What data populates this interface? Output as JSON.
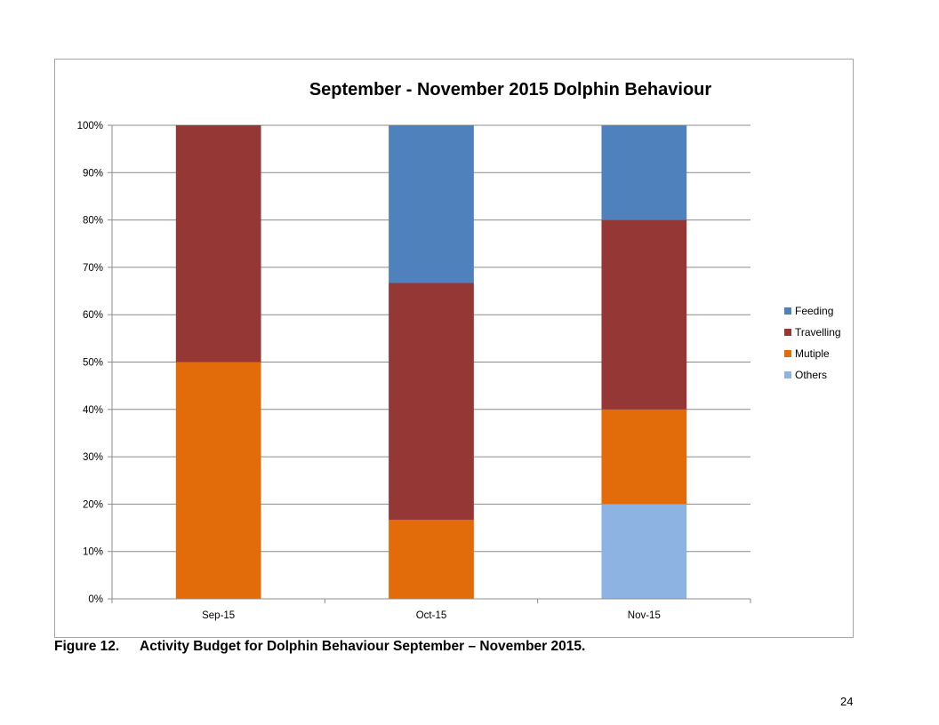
{
  "chart_data": {
    "type": "bar",
    "stacked": true,
    "percent_stacked": true,
    "title": "September - November 2015 Dolphin Behaviour",
    "categories": [
      "Sep-15",
      "Oct-15",
      "Nov-15"
    ],
    "series": [
      {
        "name": "Others",
        "color": "#8DB3E2",
        "values": [
          0,
          0,
          20
        ]
      },
      {
        "name": "Mutiple",
        "color": "#E36C0A",
        "values": [
          50,
          16.7,
          20
        ]
      },
      {
        "name": "Travelling",
        "color": "#953735",
        "values": [
          50,
          50,
          40
        ]
      },
      {
        "name": "Feeding",
        "color": "#4F81BD",
        "values": [
          0,
          33.3,
          20
        ]
      }
    ],
    "legend_order": [
      "Feeding",
      "Travelling",
      "Mutiple",
      "Others"
    ],
    "ylim": [
      0,
      100
    ],
    "yticks": [
      "0%",
      "10%",
      "20%",
      "30%",
      "40%",
      "50%",
      "60%",
      "70%",
      "80%",
      "90%",
      "100%"
    ],
    "grid": true,
    "legend_position": "right"
  },
  "caption": {
    "number": "Figure 12.",
    "text": "Activity Budget for Dolphin Behaviour September – November 2015."
  },
  "page_number": "24"
}
